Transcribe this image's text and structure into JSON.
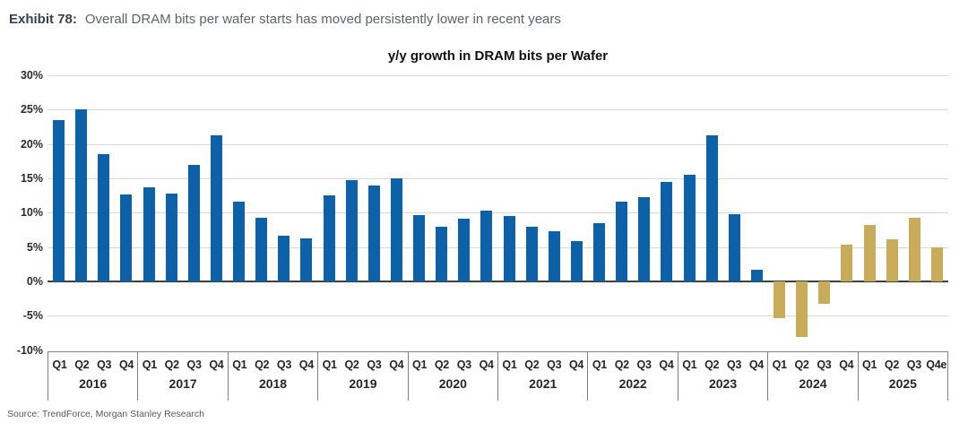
{
  "header": {
    "exhibit": "Exhibit 78:",
    "description": "Overall DRAM bits per wafer starts has moved persistently lower in recent years"
  },
  "source": "Source: TrendForce, Morgan Stanley Research",
  "chart_data": {
    "type": "bar",
    "title": "y/y growth in DRAM bits per Wafer",
    "xlabel": "",
    "ylabel": "",
    "ylim": [
      -10,
      30
    ],
    "yticks": [
      30,
      25,
      20,
      15,
      10,
      5,
      0,
      -5,
      -10
    ],
    "ytick_labels": [
      "30%",
      "25%",
      "20%",
      "15%",
      "10%",
      "5%",
      "0%",
      "-5%",
      "-10%"
    ],
    "grid": true,
    "legend": "none",
    "colors": {
      "history_bar": "#0d61a8",
      "forecast_bar": "#c9ac5a",
      "gridline": "#d8d8d8",
      "zero_line": "#3f3f3f",
      "axis_box_line": "#7f7f7f"
    },
    "groups": [
      {
        "year": "2016",
        "series": "history",
        "quarters": [
          "Q1",
          "Q2",
          "Q3",
          "Q4"
        ],
        "values": [
          23.5,
          25.0,
          18.5,
          12.6
        ]
      },
      {
        "year": "2017",
        "series": "history",
        "quarters": [
          "Q1",
          "Q2",
          "Q3",
          "Q4"
        ],
        "values": [
          13.7,
          12.8,
          17.0,
          21.2
        ]
      },
      {
        "year": "2018",
        "series": "history",
        "quarters": [
          "Q1",
          "Q2",
          "Q3",
          "Q4"
        ],
        "values": [
          11.6,
          9.3,
          6.7,
          6.3
        ]
      },
      {
        "year": "2019",
        "series": "history",
        "quarters": [
          "Q1",
          "Q2",
          "Q3",
          "Q4"
        ],
        "values": [
          12.5,
          14.8,
          13.9,
          15.0
        ]
      },
      {
        "year": "2020",
        "series": "history",
        "quarters": [
          "Q1",
          "Q2",
          "Q3",
          "Q4"
        ],
        "values": [
          9.6,
          8.0,
          9.1,
          10.3
        ]
      },
      {
        "year": "2021",
        "series": "history",
        "quarters": [
          "Q1",
          "Q2",
          "Q3",
          "Q4"
        ],
        "values": [
          9.5,
          7.9,
          7.3,
          5.8
        ]
      },
      {
        "year": "2022",
        "series": "history",
        "quarters": [
          "Q1",
          "Q2",
          "Q3",
          "Q4"
        ],
        "values": [
          8.5,
          11.6,
          12.2,
          14.5
        ]
      },
      {
        "year": "2023",
        "series": "history",
        "quarters": [
          "Q1",
          "Q2",
          "Q3",
          "Q4"
        ],
        "values": [
          15.5,
          21.3,
          9.8,
          1.7
        ]
      },
      {
        "year": "2024",
        "series": "forecast",
        "quarters": [
          "Q1",
          "Q2",
          "Q3",
          "Q4"
        ],
        "values": [
          -5.4,
          -8.1,
          -3.3,
          5.3
        ]
      },
      {
        "year": "2025",
        "series": "forecast",
        "quarters": [
          "Q1",
          "Q2",
          "Q3",
          "Q4e"
        ],
        "values": [
          8.2,
          6.1,
          9.2,
          5.0
        ]
      }
    ]
  }
}
